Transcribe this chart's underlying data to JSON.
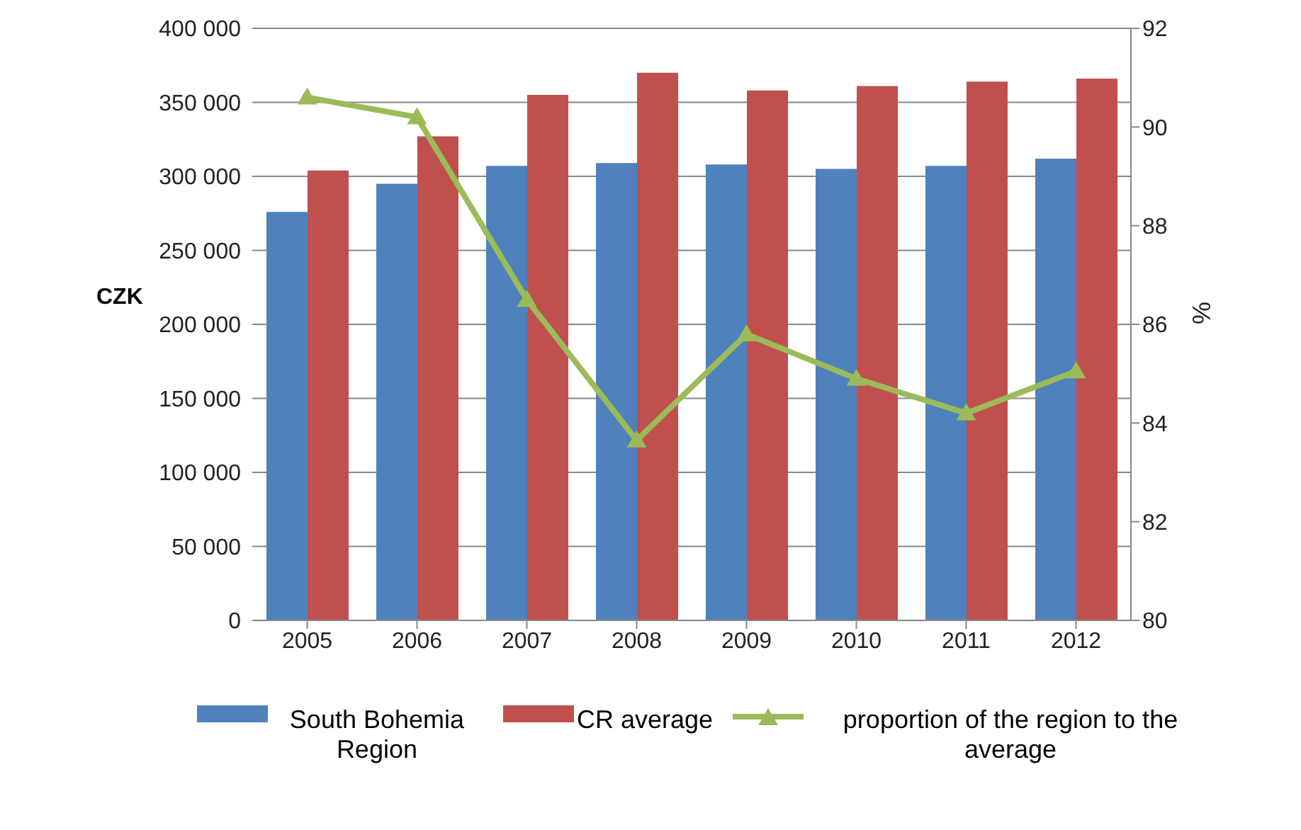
{
  "chart_data": {
    "type": "bar",
    "ylabel": "CZK",
    "y2label": "%",
    "categories": [
      "2005",
      "2006",
      "2007",
      "2008",
      "2009",
      "2010",
      "2011",
      "2012"
    ],
    "series": [
      {
        "name": "South Bohemia Region",
        "color": "#4f81bd",
        "values": [
          276000,
          295000,
          307000,
          309000,
          308000,
          305000,
          307000,
          312000
        ]
      },
      {
        "name": "CR average",
        "color": "#c0504d",
        "values": [
          304000,
          327000,
          355000,
          370000,
          358000,
          361000,
          364000,
          366000
        ]
      },
      {
        "name": "proportion of the region to the average",
        "type": "line",
        "axis": "y2",
        "color": "#9bbb59",
        "marker": "triangle",
        "values": [
          90.6,
          90.2,
          86.5,
          83.65,
          85.8,
          84.9,
          84.2,
          85.05
        ]
      }
    ],
    "ylim": [
      0,
      400000
    ],
    "yticks": [
      {
        "value": 0,
        "label": "0"
      },
      {
        "value": 50000,
        "label": "50 000"
      },
      {
        "value": 100000,
        "label": "100 000"
      },
      {
        "value": 150000,
        "label": "150 000"
      },
      {
        "value": 200000,
        "label": "200 000"
      },
      {
        "value": 250000,
        "label": "250 000"
      },
      {
        "value": 300000,
        "label": "300 000"
      },
      {
        "value": 350000,
        "label": "350 000"
      },
      {
        "value": 400000,
        "label": "400 000"
      }
    ],
    "y2lim": [
      80,
      92
    ],
    "y2ticks": [
      80,
      82,
      84,
      86,
      88,
      90,
      92
    ],
    "grid": "y",
    "legend": "bottom"
  }
}
